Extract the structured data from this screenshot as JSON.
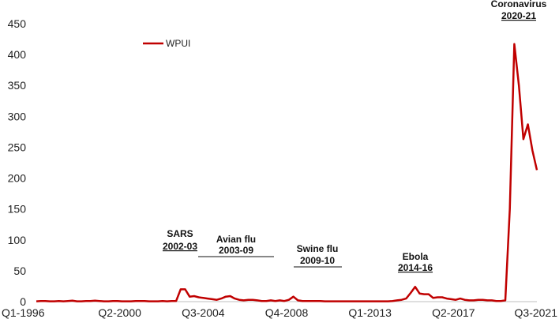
{
  "chart_data": {
    "type": "line",
    "title": "",
    "xlabel": "",
    "ylabel": "",
    "ylim": [
      0,
      450
    ],
    "yticks": [
      0,
      50,
      100,
      150,
      200,
      250,
      300,
      350,
      400,
      450
    ],
    "x_ticks": [
      "Q1-1996",
      "Q2-2000",
      "Q3-2004",
      "Q4-2008",
      "Q1-2013",
      "Q2-2017",
      "Q3-2021"
    ],
    "legend": {
      "position": "top-left"
    },
    "grid": false,
    "series": [
      {
        "name": "WPUI",
        "color": "#c00000",
        "x_start": "Q1-1996",
        "x_end": "Q3-2021",
        "values": [
          0.5,
          1,
          1,
          0.5,
          0.5,
          1,
          0.5,
          1,
          1.5,
          0.5,
          0.5,
          1,
          1,
          1.5,
          1,
          0.5,
          0.5,
          1,
          1,
          0.5,
          0.5,
          0.5,
          1,
          1,
          1,
          0.5,
          0.5,
          0.5,
          1,
          0.5,
          1,
          1,
          20,
          20,
          8,
          9,
          7,
          6,
          5,
          4,
          3,
          5,
          8,
          9,
          5,
          3,
          2,
          3,
          3,
          2,
          1,
          1,
          2,
          1,
          2,
          1,
          3,
          8,
          2,
          1,
          1,
          1,
          1,
          1,
          0.5,
          0.5,
          0.5,
          0.5,
          0.5,
          0.5,
          0.5,
          0.5,
          0.5,
          0.5,
          0.5,
          0.5,
          0.5,
          0.5,
          0.5,
          1,
          2,
          3,
          5,
          14,
          24,
          13,
          12,
          12,
          6,
          7,
          7,
          5,
          4,
          3,
          5,
          3,
          2,
          2,
          3,
          3,
          2,
          2,
          1,
          1,
          2,
          150,
          417,
          350,
          263,
          287,
          245,
          213
        ]
      }
    ],
    "annotations": [
      {
        "name": "SARS",
        "years": "2002-03"
      },
      {
        "name": "Avian flu",
        "years": "2003-09"
      },
      {
        "name": "Swine flu",
        "years": "2009-10"
      },
      {
        "name": "Ebola",
        "years": "2014-16"
      },
      {
        "name": "Coronavirus",
        "years": "2020-21"
      }
    ]
  }
}
